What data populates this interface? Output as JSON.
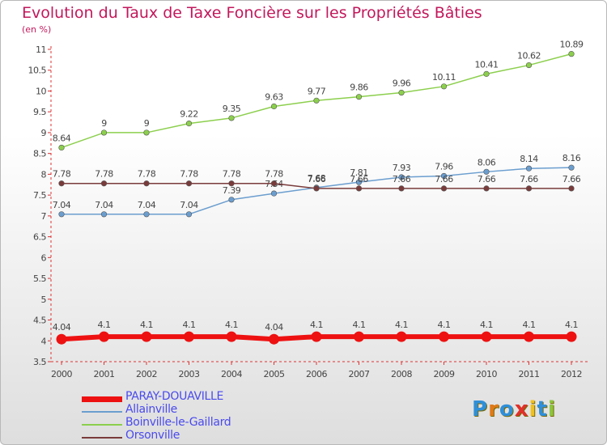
{
  "chart_data": {
    "type": "line",
    "title": "Evolution du Taux de Taxe Foncière sur les Propriétés Bâties",
    "unit_label": "(en %)",
    "x": [
      "2000",
      "2001",
      "2002",
      "2003",
      "2004",
      "2005",
      "2006",
      "2007",
      "2008",
      "2009",
      "2010",
      "2011",
      "2012"
    ],
    "ylim": [
      3.5,
      11
    ],
    "y_ticks": [
      "3.5",
      "4",
      "4.5",
      "5",
      "5.5",
      "6",
      "6.5",
      "7",
      "7.5",
      "8",
      "8.5",
      "9",
      "9.5",
      "10",
      "10.5",
      "11"
    ],
    "grid": false,
    "legend_position": "bottom-left",
    "series": [
      {
        "name": "Boinville-le-Gaillard",
        "color": "#8ccf4d",
        "values": [
          8.64,
          9,
          9,
          9.22,
          9.35,
          9.63,
          9.77,
          9.86,
          9.96,
          10.11,
          10.41,
          10.62,
          10.89
        ],
        "labels": [
          "8.64",
          "9",
          "9",
          "9.22",
          "9.35",
          "9.63",
          "9.77",
          "9.86",
          "9.96",
          "10.11",
          "10.41",
          "10.62",
          "10.89"
        ]
      },
      {
        "name": "Allainville",
        "color": "#6b9ecf",
        "values": [
          7.04,
          7.04,
          7.04,
          7.04,
          7.39,
          7.54,
          7.68,
          7.81,
          7.93,
          7.96,
          8.06,
          8.14,
          8.16
        ],
        "labels": [
          "7.04",
          "7.04",
          "7.04",
          "7.04",
          "7.39",
          "7.54",
          "7.68",
          "7.81",
          "7.93",
          "7.96",
          "8.06",
          "8.14",
          "8.16"
        ]
      },
      {
        "name": "Orsonville",
        "color": "#7a3b3b",
        "values": [
          7.78,
          7.78,
          7.78,
          7.78,
          7.78,
          7.78,
          7.66,
          7.66,
          7.66,
          7.66,
          7.66,
          7.66,
          7.66
        ],
        "labels": [
          "7.78",
          "7.78",
          "7.78",
          "7.78",
          "7.78",
          "7.78",
          "7.66",
          "7.66",
          "7.66",
          "7.66",
          "7.66",
          "7.66",
          "7.66"
        ]
      },
      {
        "name": "PARAY-DOUAVILLE",
        "color": "#ee1111",
        "values": [
          4.04,
          4.1,
          4.1,
          4.1,
          4.1,
          4.04,
          4.1,
          4.1,
          4.1,
          4.1,
          4.1,
          4.1,
          4.1
        ],
        "labels": [
          "4.04",
          "4.1",
          "4.1",
          "4.1",
          "4.1",
          "4.04",
          "4.1",
          "4.1",
          "4.1",
          "4.1",
          "4.1",
          "4.1",
          "4.1"
        ]
      }
    ]
  },
  "legend": [
    {
      "name": "PARAY-DOUAVILLE",
      "color": "#ee1111",
      "line": "thick"
    },
    {
      "name": "Allainville",
      "color": "#6b9ecf",
      "line": "thin"
    },
    {
      "name": "Boinville-le-Gaillard",
      "color": "#8ccf4d",
      "line": "thin"
    },
    {
      "name": "Orsonville",
      "color": "#7a3b3b",
      "line": "thin"
    }
  ],
  "logo": {
    "letters": [
      "P",
      "r",
      "o",
      "x",
      "i",
      "t",
      "i"
    ],
    "colors": [
      "#2f8fd8",
      "#e07a18",
      "#2f8fd8",
      "#e0302a",
      "#f0c020",
      "#2f8fd8",
      "#8cc63f"
    ]
  }
}
